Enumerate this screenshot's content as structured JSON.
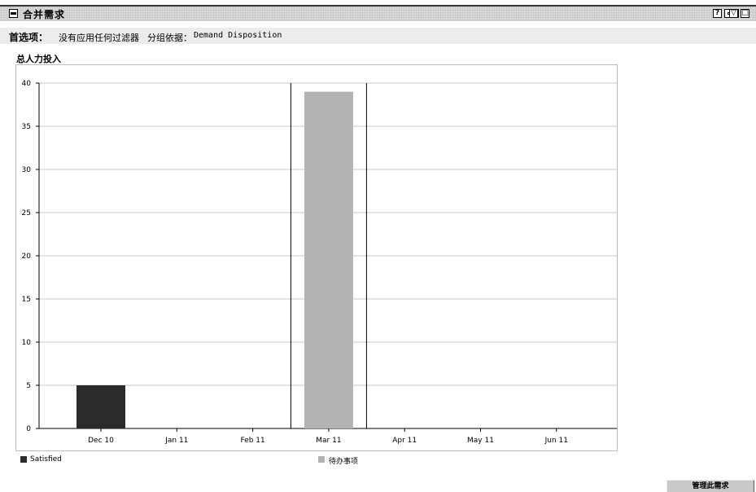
{
  "portlet": {
    "title": "合并需求",
    "controls": [
      "?",
      "",
      "▽",
      "□"
    ]
  },
  "filter": {
    "label": "首选项：",
    "text": "没有应用任何过滤器",
    "group_label": "分组依据：",
    "group_value": "Demand Disposition"
  },
  "section_title": "总人力投入",
  "chart_data": {
    "type": "bar",
    "categories": [
      "Dec 10",
      "Jan 11",
      "Feb 11",
      "Mar 11",
      "Apr 11",
      "May 11",
      "Jun 11"
    ],
    "series": [
      {
        "name": "Satisfied",
        "values": [
          5,
          0,
          0,
          0,
          0,
          0,
          0
        ],
        "color": "#2b2b2b"
      },
      {
        "name": "待办事项",
        "values": [
          0,
          0,
          0,
          39,
          0,
          0,
          0
        ],
        "color": "#b3b3b3"
      }
    ],
    "ylim": [
      0,
      40
    ],
    "yticks": [
      "0",
      "5",
      "10",
      "15",
      "20",
      "25",
      "30",
      "35",
      "40"
    ],
    "grid": true,
    "highlighted_category": "Mar 11",
    "legend_position": "bottom"
  },
  "action_button": "管理此需求"
}
